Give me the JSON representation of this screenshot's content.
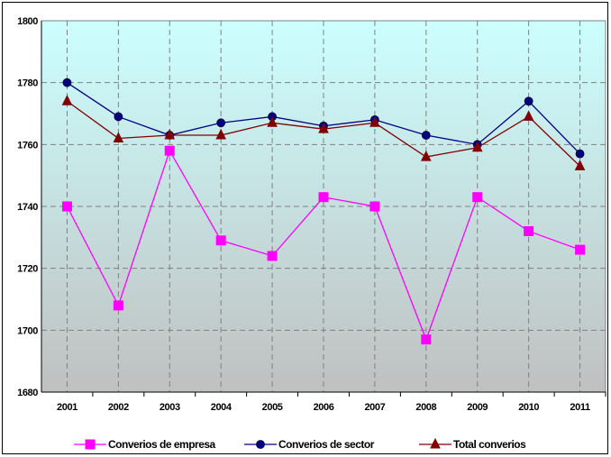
{
  "chart_data": {
    "type": "line",
    "title": "",
    "xlabel": "",
    "ylabel": "",
    "categories": [
      "2001",
      "2002",
      "2003",
      "2004",
      "2005",
      "2006",
      "2007",
      "2008",
      "2009",
      "2010",
      "2011"
    ],
    "ylim": [
      1680,
      1800
    ],
    "yticks": [
      1680,
      1700,
      1720,
      1740,
      1760,
      1780,
      1800
    ],
    "grid": true,
    "legend_position": "bottom",
    "series": [
      {
        "name": "Converios de empresa",
        "color": "#ff00ff",
        "marker": "square",
        "values": [
          1740,
          1708,
          1758,
          1729,
          1724,
          1743,
          1740,
          1697,
          1743,
          1732,
          1726
        ]
      },
      {
        "name": "Converios de sector",
        "color": "#000080",
        "marker": "circle",
        "values": [
          1780,
          1769,
          1763,
          1767,
          1769,
          1766,
          1768,
          1763,
          1760,
          1774,
          1757
        ]
      },
      {
        "name": "Total converios",
        "color": "#800000",
        "marker": "triangle",
        "values": [
          1774,
          1762,
          1763,
          1763,
          1767,
          1765,
          1767,
          1756,
          1759,
          1769,
          1753
        ]
      }
    ]
  }
}
